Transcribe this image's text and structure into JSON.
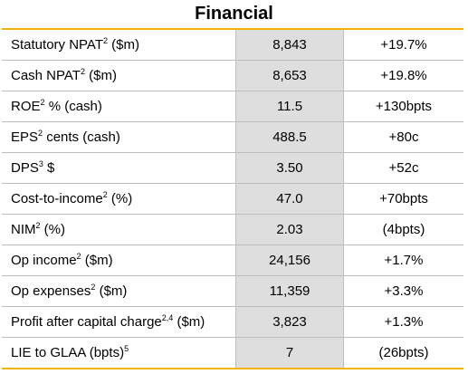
{
  "header": {
    "title": "Financial"
  },
  "table": {
    "rows": [
      {
        "label": "Statutory NPAT",
        "sup": "2",
        "suffix": " ($m)",
        "value": "8,843",
        "change": "+19.7%"
      },
      {
        "label": "Cash NPAT",
        "sup": "2",
        "suffix": " ($m)",
        "value": "8,653",
        "change": "+19.8%"
      },
      {
        "label": "ROE",
        "sup": "2",
        "suffix": " % (cash)",
        "value": "11.5",
        "change": "+130bpts"
      },
      {
        "label": "EPS",
        "sup": "2",
        "suffix": " cents (cash)",
        "value": "488.5",
        "change": "+80c"
      },
      {
        "label": "DPS",
        "sup": "3",
        "suffix": " $",
        "value": "3.50",
        "change": "+52c"
      },
      {
        "label": "Cost-to-income",
        "sup": "2",
        "suffix": " (%)",
        "value": "47.0",
        "change": "+70bpts"
      },
      {
        "label": "NIM",
        "sup": "2",
        "suffix": " (%)",
        "value": "2.03",
        "change": "(4bpts)"
      },
      {
        "label": "Op income",
        "sup": "2",
        "suffix": " ($m)",
        "value": "24,156",
        "change": "+1.7%"
      },
      {
        "label": "Op expenses",
        "sup": "2",
        "suffix": " ($m)",
        "value": "11,359",
        "change": "+3.3%"
      },
      {
        "label": "Profit after capital charge",
        "sup": "2,4",
        "suffix": " ($m)",
        "value": "3,823",
        "change": "+1.3%"
      },
      {
        "label": "LIE to GLAA (bpts)",
        "sup": "5",
        "value": "7",
        "change": "(26bpts)"
      }
    ]
  }
}
